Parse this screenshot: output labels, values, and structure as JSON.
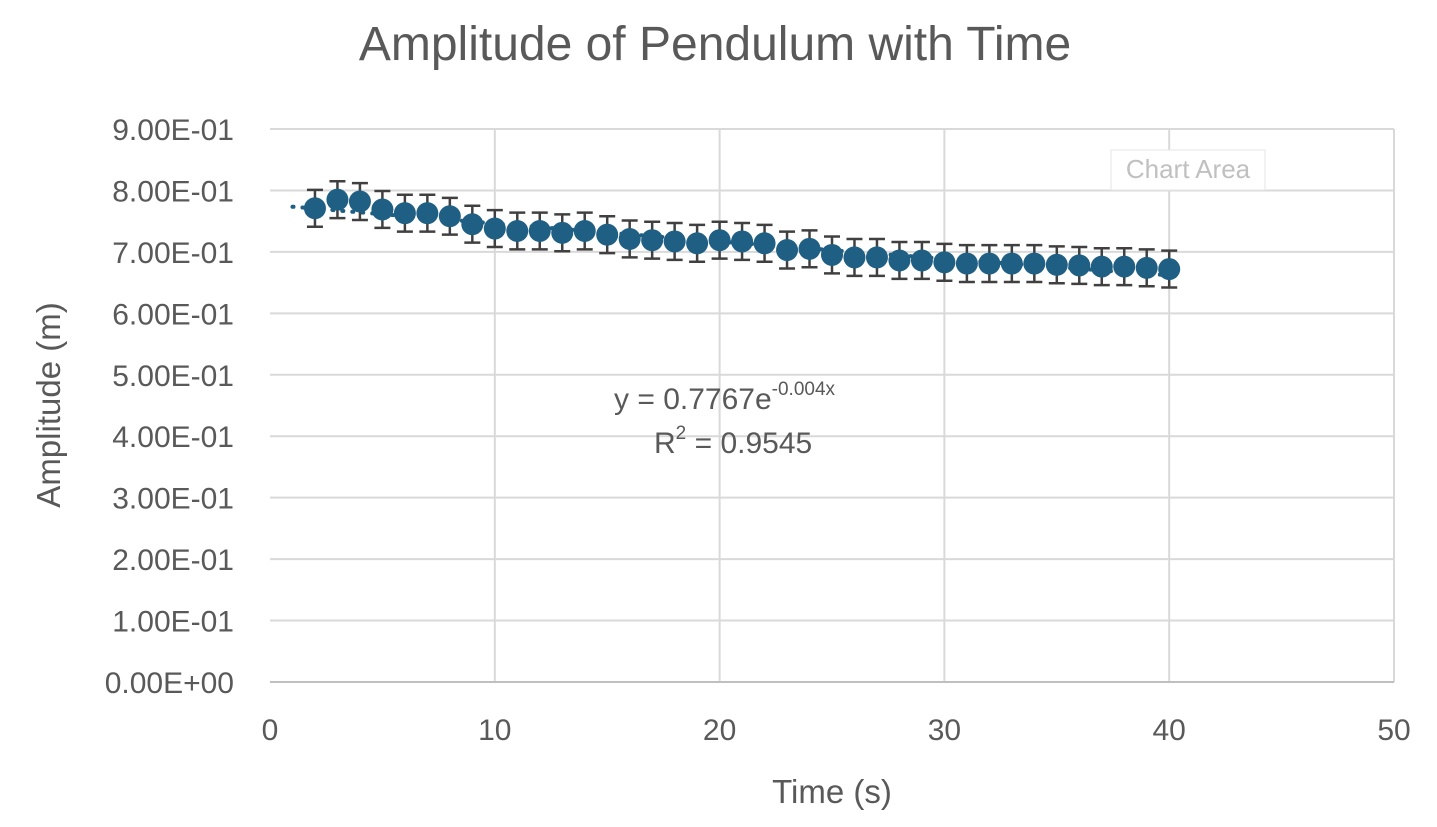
{
  "chart_data": {
    "type": "scatter",
    "title": "Amplitude of Pendulum with Time",
    "xlabel": "Time (s)",
    "ylabel": "Amplitude (m)",
    "xlim": [
      0,
      50
    ],
    "ylim": [
      0,
      0.9
    ],
    "x_ticks": [
      "0",
      "10",
      "20",
      "30",
      "40",
      "50"
    ],
    "y_ticks": [
      "0.00E+00",
      "1.00E-01",
      "2.00E-01",
      "3.00E-01",
      "4.00E-01",
      "5.00E-01",
      "6.00E-01",
      "7.00E-01",
      "8.00E-01",
      "9.00E-01"
    ],
    "grid": true,
    "marker_color": "#1f5f83",
    "error_bar_color": "#404040",
    "grid_color": "#d9d9d9",
    "error_bar": 0.03,
    "series": [
      {
        "x": [
          2,
          3,
          4,
          5,
          6,
          7,
          8,
          9,
          10,
          11,
          12,
          13,
          14,
          15,
          16,
          17,
          18,
          19,
          20,
          21,
          22,
          23,
          24,
          25,
          26,
          27,
          28,
          29,
          30,
          31,
          32,
          33,
          34,
          35,
          36,
          37,
          38,
          39,
          40
        ],
        "y": [
          0.771,
          0.785,
          0.782,
          0.769,
          0.763,
          0.763,
          0.758,
          0.745,
          0.738,
          0.734,
          0.734,
          0.731,
          0.734,
          0.728,
          0.721,
          0.719,
          0.717,
          0.714,
          0.719,
          0.717,
          0.714,
          0.703,
          0.705,
          0.695,
          0.691,
          0.691,
          0.686,
          0.686,
          0.683,
          0.681,
          0.681,
          0.681,
          0.681,
          0.679,
          0.678,
          0.676,
          0.676,
          0.674,
          0.672
        ]
      }
    ],
    "trendline": {
      "type": "exponential",
      "a": 0.7767,
      "b": -0.004,
      "equation_main": "y = 0.7767e",
      "equation_exp": "-0.004x",
      "r2_main": "R",
      "r2_sup": "2",
      "r2_value": " = 0.9545"
    },
    "tooltip": "Chart Area"
  }
}
